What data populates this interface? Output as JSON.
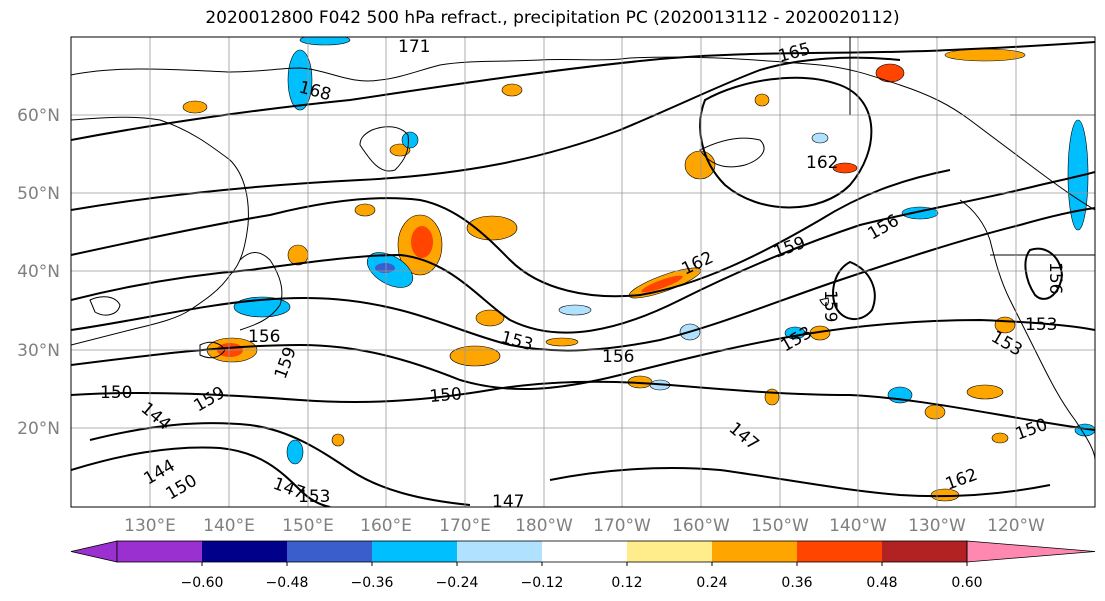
{
  "title": "2020012800 F042 500 hPa refract., precipitation PC (2020013112 - 2020020112)",
  "latitude_labels": [
    "20°N",
    "30°N",
    "40°N",
    "50°N",
    "60°N"
  ],
  "longitude_labels": [
    "130°E",
    "140°E",
    "150°E",
    "160°E",
    "170°E",
    "180°W",
    "170°W",
    "160°W",
    "150°W",
    "140°W",
    "130°W",
    "120°W"
  ],
  "contour_labels": [
    "171",
    "168",
    "165",
    "162",
    "162",
    "159",
    "159",
    "159",
    "159",
    "156",
    "156",
    "156",
    "156",
    "153",
    "153",
    "153",
    "153",
    "153",
    "150",
    "150",
    "150",
    "150",
    "147",
    "147",
    "147",
    "144",
    "144",
    "162"
  ],
  "colorbar": {
    "tick_labels": [
      "−0.60",
      "−0.48",
      "−0.36",
      "−0.24",
      "−0.12",
      "0.12",
      "0.24",
      "0.36",
      "0.48",
      "0.60"
    ],
    "colors": [
      "#9b30d0",
      "#00008b",
      "#3a5fcd",
      "#00bfff",
      "#b0e2ff",
      "#ffffff",
      "#ffec8b",
      "#ffa500",
      "#ff4500",
      "#b22222",
      "#ff88b0"
    ]
  },
  "colors": {
    "positive_light": "#ffec8b",
    "positive_mid": "#ffa500",
    "positive_strong": "#ff4500",
    "negative_light": "#b0e2ff",
    "negative_mid": "#00bfff",
    "negative_strong": "#3a5fcd",
    "grid": "#999999"
  }
}
